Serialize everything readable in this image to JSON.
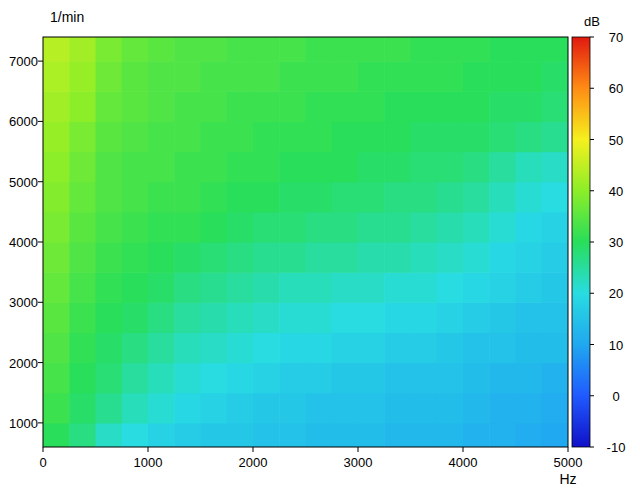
{
  "chart_data": {
    "type": "heatmap",
    "x_label": "Hz",
    "y_label": "1/min",
    "xlim": [
      0,
      5000
    ],
    "xticks": [
      0,
      1000,
      2000,
      3000,
      4000,
      5000
    ],
    "ylim": [
      600,
      7400
    ],
    "yticks": [
      1000,
      2000,
      3000,
      4000,
      5000,
      6000,
      7000
    ],
    "x_bins": [
      0,
      250,
      500,
      750,
      1000,
      1250,
      1500,
      1750,
      2000,
      2250,
      2500,
      2750,
      3000,
      3250,
      3500,
      3750,
      4000,
      4250,
      4500,
      4750,
      5000
    ],
    "y_bins": [
      600,
      1000,
      1500,
      2000,
      2500,
      3000,
      3500,
      4000,
      4500,
      5000,
      5500,
      6000,
      6500,
      7000,
      7400
    ],
    "cells": [
      [
        30,
        27,
        22,
        20,
        18,
        17,
        16,
        16,
        15,
        15,
        14,
        14,
        14,
        13,
        13,
        13,
        12,
        12,
        11,
        10
      ],
      [
        32,
        29,
        26,
        23,
        21,
        19,
        18,
        17,
        16,
        16,
        15,
        15,
        15,
        14,
        14,
        14,
        13,
        12,
        12,
        11
      ],
      [
        33,
        30,
        28,
        25,
        23,
        21,
        20,
        19,
        18,
        17,
        17,
        16,
        16,
        15,
        15,
        15,
        14,
        13,
        13,
        12
      ],
      [
        34,
        31,
        29,
        27,
        25,
        23,
        22,
        21,
        20,
        19,
        19,
        18,
        18,
        17,
        17,
        16,
        15,
        15,
        14,
        14
      ],
      [
        35,
        32,
        30,
        29,
        27,
        25,
        24,
        23,
        22,
        21,
        21,
        20,
        20,
        19,
        19,
        18,
        17,
        16,
        15,
        15
      ],
      [
        36,
        33,
        31,
        30,
        29,
        27,
        26,
        25,
        24,
        23,
        23,
        22,
        22,
        21,
        21,
        20,
        19,
        18,
        17,
        16
      ],
      [
        37,
        34,
        32,
        31,
        30,
        29,
        28,
        27,
        26,
        26,
        25,
        25,
        24,
        24,
        23,
        22,
        21,
        19,
        18,
        17
      ],
      [
        38,
        35,
        33,
        32,
        31,
        31,
        30,
        29,
        28,
        28,
        27,
        27,
        26,
        26,
        25,
        24,
        23,
        21,
        19,
        18
      ],
      [
        39,
        36,
        34,
        33,
        32,
        32,
        31,
        30,
        30,
        29,
        29,
        28,
        28,
        27,
        27,
        26,
        25,
        23,
        21,
        20
      ],
      [
        40,
        37,
        34,
        33,
        33,
        32,
        32,
        31,
        31,
        30,
        30,
        30,
        29,
        29,
        28,
        28,
        27,
        25,
        23,
        22
      ],
      [
        41,
        38,
        35,
        34,
        33,
        33,
        32,
        32,
        31,
        31,
        31,
        30,
        30,
        30,
        29,
        29,
        29,
        28,
        27,
        26
      ],
      [
        42,
        40,
        36,
        35,
        34,
        33,
        33,
        32,
        32,
        32,
        31,
        31,
        31,
        30,
        30,
        30,
        30,
        29,
        29,
        28
      ],
      [
        43,
        41,
        37,
        35,
        34,
        34,
        33,
        33,
        33,
        32,
        32,
        32,
        31,
        31,
        31,
        31,
        30,
        30,
        30,
        29
      ],
      [
        44,
        42,
        38,
        36,
        35,
        34,
        34,
        33,
        33,
        33,
        32,
        32,
        32,
        32,
        31,
        31,
        31,
        30,
        30,
        30
      ]
    ],
    "colorbar": {
      "label": "dB",
      "range": [
        -10,
        70
      ],
      "ticks": [
        -10,
        0,
        10,
        20,
        30,
        40,
        50,
        60,
        70
      ]
    }
  }
}
